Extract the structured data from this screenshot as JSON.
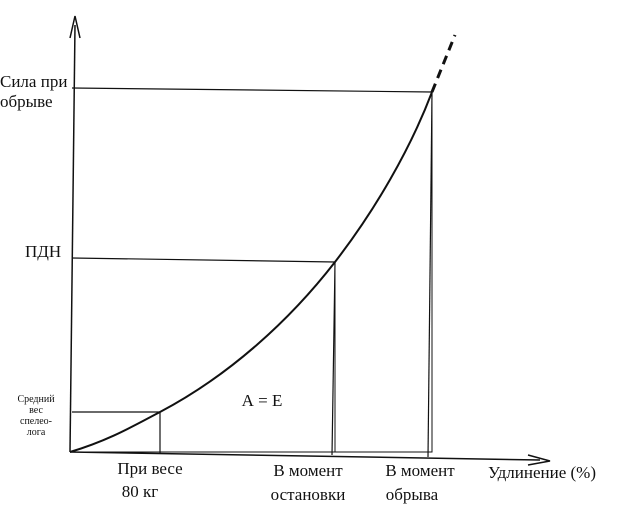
{
  "diagram": {
    "y_labels": {
      "breaking_force": [
        "Сила при",
        "обрыве"
      ],
      "pdn": "ПДН",
      "avg_weight": [
        "Средний",
        "вес",
        "спелео-",
        "лога"
      ]
    },
    "x_labels": {
      "at_80kg": [
        "При весе",
        "80 кг"
      ],
      "at_stop": [
        "В момент",
        "остановки"
      ],
      "at_break": [
        "В момент",
        "обрыва"
      ],
      "axis": "Удлинение (%)"
    },
    "area_label": "А = Е"
  }
}
